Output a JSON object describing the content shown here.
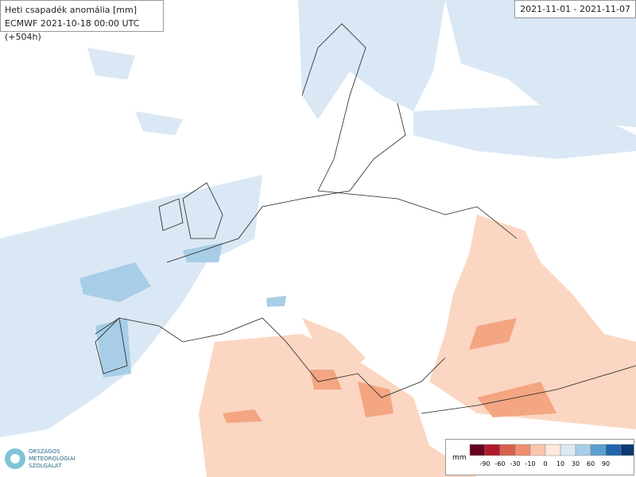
{
  "header": {
    "title": "Heti csapadék anomália [mm]",
    "subtitle": "ECMWF 2021-10-18 00:00 UTC (+504h)"
  },
  "period": "2021-11-01 - 2021-11-07",
  "logo": {
    "lines": [
      "ORSZÁGOS",
      "METEOROLÓGIAI",
      "SZOLGÁLAT"
    ]
  },
  "legend": {
    "unit": "mm",
    "ticks": [
      "-90",
      "-60",
      "-30",
      "-10",
      "0",
      "10",
      "30",
      "60",
      "90"
    ],
    "colors": [
      "#67001f",
      "#b2182b",
      "#d6604d",
      "#f08e6e",
      "#f9c6ad",
      "#fde9dd",
      "#dbe9f4",
      "#a8cde6",
      "#5a9fcf",
      "#2166ac",
      "#0b3a74"
    ]
  }
}
